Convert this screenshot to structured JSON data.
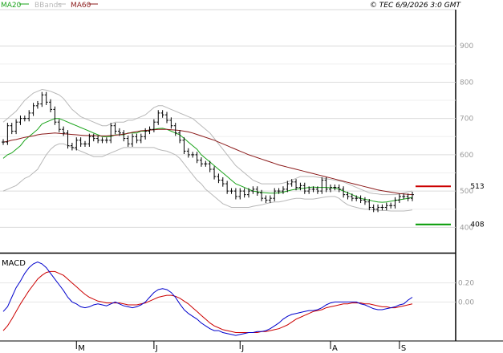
{
  "header": {
    "legend": [
      {
        "label": "MA20",
        "color": "#19a319"
      },
      {
        "label": "BBands",
        "color": "#b8b8b8"
      },
      {
        "label": "MA60",
        "color": "#8b1a1a"
      }
    ],
    "copyright": "© TEC 6/9/2026 3:0 GMT"
  },
  "chart_data": [
    {
      "type": "line",
      "title": "",
      "price_scale": {
        "ylim": [
          330,
          1000
        ],
        "ticks": [
          "900",
          "800",
          "700",
          "600",
          "500",
          "400"
        ],
        "tick_values": [
          900,
          800,
          700,
          600,
          500,
          400
        ]
      },
      "months": [
        "M",
        "J",
        "J",
        "A",
        "S"
      ],
      "series": [
        {
          "name": "Price",
          "type": "ohlc",
          "color": "#000000",
          "values": [
            635,
            680,
            665,
            690,
            700,
            700,
            715,
            735,
            740,
            765,
            745,
            725,
            690,
            670,
            660,
            625,
            620,
            640,
            630,
            630,
            650,
            645,
            640,
            640,
            640,
            680,
            665,
            660,
            645,
            630,
            650,
            640,
            650,
            665,
            670,
            690,
            715,
            710,
            695,
            680,
            660,
            640,
            610,
            600,
            600,
            585,
            575,
            575,
            560,
            540,
            530,
            520,
            500,
            500,
            485,
            500,
            490,
            500,
            505,
            495,
            480,
            475,
            480,
            500,
            500,
            505,
            520,
            525,
            510,
            515,
            500,
            505,
            505,
            500,
            530,
            505,
            510,
            510,
            505,
            490,
            485,
            480,
            480,
            475,
            470,
            455,
            450,
            455,
            455,
            460,
            460,
            475,
            485,
            485,
            480,
            490
          ]
        },
        {
          "name": "MA20",
          "color": "#19a319",
          "values": [
            590,
            600,
            605,
            615,
            625,
            640,
            650,
            660,
            670,
            685,
            690,
            695,
            700,
            700,
            695,
            690,
            685,
            680,
            675,
            670,
            665,
            660,
            655,
            650,
            650,
            650,
            655,
            655,
            655,
            660,
            660,
            660,
            665,
            665,
            668,
            670,
            672,
            673,
            670,
            665,
            660,
            655,
            645,
            635,
            625,
            615,
            600,
            590,
            580,
            570,
            560,
            550,
            540,
            530,
            520,
            515,
            510,
            505,
            500,
            498,
            496,
            495,
            494,
            494,
            495,
            497,
            500,
            503,
            505,
            507,
            508,
            510,
            511,
            510,
            510,
            510,
            509,
            508,
            505,
            500,
            495,
            490,
            485,
            480,
            477,
            475,
            472,
            470,
            469,
            470,
            472,
            474,
            476,
            478,
            480,
            483
          ]
        },
        {
          "name": "BBands upper",
          "color": "#b8b8b8",
          "values": [
            690,
            700,
            710,
            720,
            735,
            750,
            760,
            770,
            775,
            780,
            778,
            775,
            770,
            765,
            755,
            740,
            725,
            715,
            705,
            700,
            695,
            690,
            685,
            680,
            680,
            685,
            690,
            690,
            690,
            695,
            695,
            700,
            705,
            710,
            720,
            730,
            735,
            735,
            730,
            725,
            720,
            715,
            710,
            705,
            700,
            690,
            680,
            670,
            660,
            645,
            630,
            615,
            600,
            585,
            570,
            560,
            550,
            540,
            530,
            525,
            520,
            520,
            520,
            520,
            520,
            522,
            525,
            530,
            535,
            540,
            540,
            540,
            540,
            538,
            536,
            534,
            532,
            530,
            528,
            525,
            520,
            515,
            510,
            505,
            500,
            495,
            493,
            492,
            490,
            490,
            490,
            490,
            492,
            495,
            498,
            500
          ]
        },
        {
          "name": "BBands lower",
          "color": "#b8b8b8",
          "values": [
            500,
            505,
            510,
            515,
            525,
            535,
            540,
            550,
            560,
            580,
            600,
            615,
            625,
            630,
            630,
            625,
            620,
            615,
            610,
            605,
            600,
            595,
            595,
            595,
            600,
            605,
            610,
            615,
            620,
            620,
            620,
            620,
            620,
            620,
            620,
            620,
            615,
            612,
            610,
            605,
            600,
            590,
            575,
            560,
            545,
            530,
            520,
            505,
            495,
            485,
            475,
            465,
            460,
            455,
            455,
            455,
            455,
            455,
            458,
            460,
            462,
            465,
            468,
            470,
            470,
            472,
            475,
            478,
            480,
            480,
            478,
            478,
            478,
            480,
            482,
            484,
            485,
            485,
            480,
            470,
            462,
            458,
            455,
            452,
            450,
            450,
            448,
            447,
            446,
            446,
            445,
            445,
            445,
            445,
            446,
            448
          ]
        },
        {
          "name": "MA60",
          "color": "#8b1a1a",
          "values": [
            635,
            637,
            640,
            642,
            645,
            648,
            650,
            652,
            655,
            657,
            658,
            659,
            660,
            659,
            658,
            657,
            656,
            655,
            654,
            653,
            653,
            653,
            652,
            652,
            652,
            653,
            654,
            655,
            657,
            659,
            662,
            664,
            666,
            667,
            668,
            669,
            670,
            670,
            670,
            669,
            668,
            667,
            665,
            663,
            660,
            656,
            652,
            648,
            644,
            640,
            635,
            630,
            625,
            620,
            615,
            610,
            605,
            600,
            596,
            592,
            588,
            584,
            580,
            576,
            572,
            569,
            566,
            563,
            560,
            557,
            554,
            551,
            548,
            545,
            542,
            539,
            536,
            533,
            530,
            527,
            524,
            521,
            518,
            515,
            512,
            509,
            506,
            503,
            501,
            499,
            497,
            495,
            493,
            492,
            491,
            490
          ]
        }
      ],
      "annotations": [
        {
          "label": "513",
          "value": 513,
          "color": "#cc0000"
        },
        {
          "label": "408",
          "value": 408,
          "color": "#009900"
        }
      ]
    },
    {
      "type": "line",
      "title": "MACD",
      "scale": {
        "ylim": [
          -40,
          50
        ],
        "ticks": [
          "0.20",
          "0.00"
        ],
        "tick_values": [
          20,
          0
        ]
      },
      "series": [
        {
          "name": "MACD",
          "color": "#0000cc",
          "values": [
            -10,
            -5,
            5,
            15,
            22,
            30,
            36,
            40,
            42,
            40,
            36,
            30,
            24,
            18,
            12,
            5,
            0,
            -2,
            -5,
            -6,
            -5,
            -3,
            -2,
            -3,
            -4,
            -2,
            0,
            -2,
            -4,
            -5,
            -6,
            -5,
            -3,
            0,
            5,
            10,
            13,
            14,
            13,
            10,
            5,
            -2,
            -8,
            -12,
            -15,
            -18,
            -22,
            -25,
            -28,
            -30,
            -30,
            -32,
            -33,
            -34,
            -35,
            -34,
            -33,
            -32,
            -32,
            -31,
            -31,
            -30,
            -28,
            -25,
            -22,
            -18,
            -15,
            -13,
            -12,
            -11,
            -10,
            -9,
            -9,
            -8,
            -6,
            -3,
            -1,
            0,
            0,
            0,
            0,
            0,
            0,
            -2,
            -3,
            -5,
            -7,
            -8,
            -8,
            -7,
            -6,
            -5,
            -3,
            -2,
            2,
            5
          ]
        },
        {
          "name": "Signal",
          "color": "#cc0000",
          "values": [
            -30,
            -25,
            -18,
            -10,
            -2,
            5,
            12,
            18,
            24,
            28,
            31,
            32,
            32,
            30,
            28,
            24,
            20,
            16,
            12,
            8,
            5,
            3,
            1,
            0,
            -1,
            -1,
            -1,
            -1,
            -2,
            -3,
            -3,
            -3,
            -2,
            -1,
            1,
            3,
            5,
            6,
            7,
            7,
            6,
            4,
            1,
            -2,
            -6,
            -10,
            -14,
            -18,
            -22,
            -25,
            -27,
            -29,
            -30,
            -31,
            -32,
            -32,
            -32,
            -32,
            -32,
            -32,
            -31,
            -31,
            -30,
            -29,
            -28,
            -26,
            -24,
            -21,
            -18,
            -16,
            -14,
            -12,
            -10,
            -9,
            -8,
            -6,
            -5,
            -4,
            -3,
            -2,
            -2,
            -1,
            -1,
            -1,
            -2,
            -2,
            -3,
            -4,
            -5,
            -5,
            -6,
            -6,
            -5,
            -4,
            -3,
            -2
          ]
        }
      ]
    }
  ]
}
